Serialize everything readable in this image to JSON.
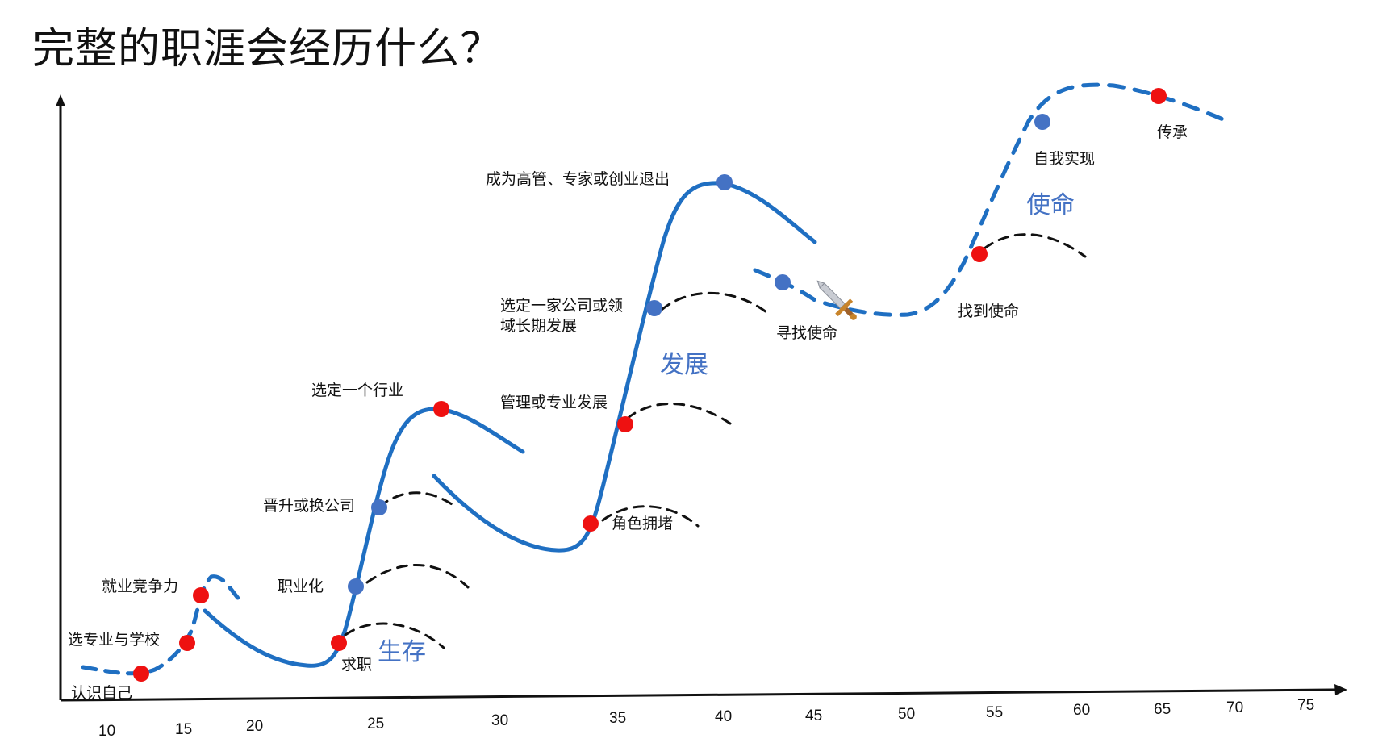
{
  "title": "完整的职涯会经历什么？",
  "colors": {
    "curve": "#1f6fc2",
    "side_curve": "#111111",
    "milestone_red": "#ee1111",
    "milestone_blue": "#4472c4",
    "stage_text": "#4472C4",
    "axis": "#111111"
  },
  "x_ticks": [
    "10",
    "15",
    "20",
    "25",
    "30",
    "35",
    "40",
    "45",
    "50",
    "55",
    "60",
    "65",
    "70",
    "75"
  ],
  "stages": [
    "生存",
    "发展",
    "使命"
  ],
  "milestones": {
    "know_self": "认识自己",
    "choose_major": "选专业与学校",
    "competitiveness": "就业竞争力",
    "job_hunt": "求职",
    "professionalize": "职业化",
    "promotion": "晋升或换公司",
    "choose_industry": "选定一个行业",
    "role_congestion": "角色拥堵",
    "mgmt_or_expert": "管理或专业发展",
    "choose_company_l1": "选定一家公司或领",
    "choose_company_l2": "域长期发展",
    "executive": "成为高管、专家或创业退出",
    "seek_mission": "寻找使命",
    "find_mission": "找到使命",
    "self_realization": "自我实现",
    "legacy": "传承"
  },
  "icons": {
    "sword": "sword-icon"
  }
}
